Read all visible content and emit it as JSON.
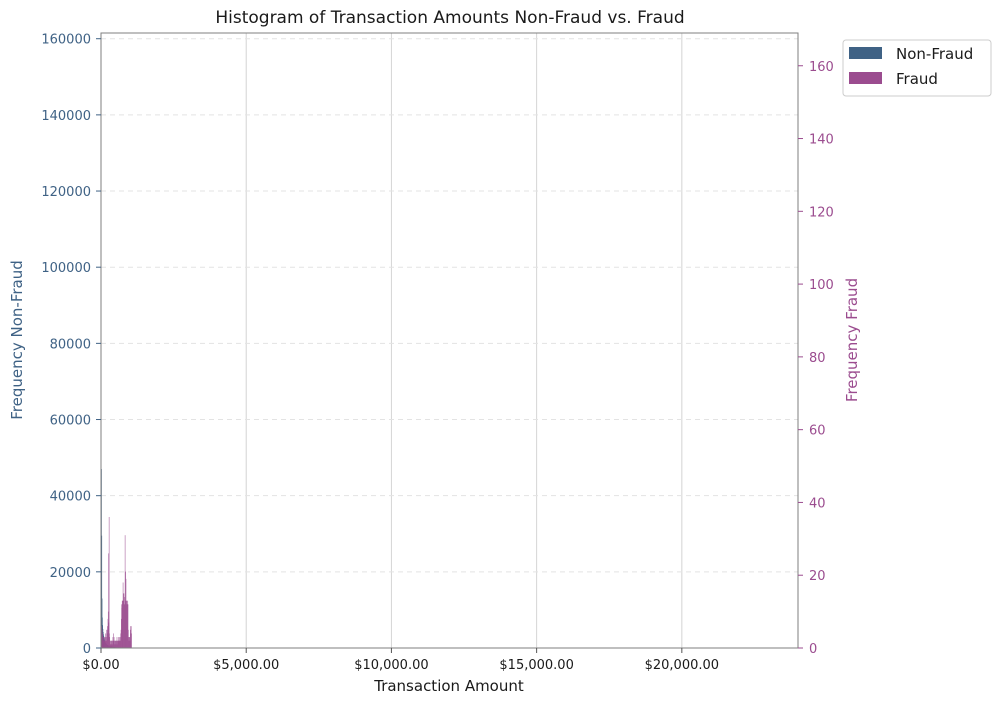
{
  "chart_data": {
    "type": "bar",
    "title": "Histogram of Transaction Amounts Non-Fraud vs. Fraud",
    "xlabel": "Transaction Amount",
    "ylabel_left": "Frequency Non-Fraud",
    "ylabel_right": "Frequency Fraud",
    "xlim": [
      0,
      24000
    ],
    "ylim_left": [
      0,
      161500
    ],
    "ylim_right": [
      0,
      169
    ],
    "x_ticks": [
      0,
      5000,
      10000,
      15000,
      20000
    ],
    "x_tick_labels": [
      "$0.00",
      "$5,000.00",
      "$10,000.00",
      "$15,000.00",
      "$20,000.00"
    ],
    "y_ticks_left": [
      0,
      20000,
      40000,
      60000,
      80000,
      100000,
      120000,
      140000,
      160000
    ],
    "y_tick_labels_left": [
      "0",
      "20000",
      "40000",
      "60000",
      "80000",
      "100000",
      "120000",
      "140000",
      "160000"
    ],
    "y_ticks_right": [
      0,
      20,
      40,
      60,
      80,
      100,
      120,
      140,
      160
    ],
    "y_tick_labels_right": [
      "0",
      "20",
      "40",
      "60",
      "80",
      "100",
      "120",
      "140",
      "160"
    ],
    "legend": {
      "placement": "outside-top-right",
      "entries": [
        "Non-Fraud",
        "Fraud"
      ]
    },
    "grid": {
      "x": true,
      "y": "dashed"
    },
    "colors": {
      "non_fraud": "#3f6285",
      "fraud": "#9b4c8f",
      "left_axis": "#3f6285",
      "right_axis": "#9b4c8f"
    },
    "series": [
      {
        "name": "Non-Fraud",
        "axis": "left",
        "bins": [
          [
            0,
            10,
            47000
          ],
          [
            10,
            20,
            29500
          ],
          [
            20,
            30,
            13000
          ],
          [
            30,
            40,
            8000
          ],
          [
            40,
            50,
            6000
          ],
          [
            50,
            60,
            5000
          ],
          [
            60,
            70,
            4200
          ],
          [
            70,
            80,
            3600
          ],
          [
            80,
            90,
            3100
          ],
          [
            90,
            100,
            2700
          ],
          [
            100,
            110,
            2300
          ],
          [
            110,
            120,
            2000
          ],
          [
            120,
            140,
            1700
          ],
          [
            140,
            160,
            1400
          ],
          [
            160,
            180,
            1200
          ],
          [
            180,
            200,
            1000
          ],
          [
            200,
            250,
            800
          ],
          [
            250,
            300,
            600
          ],
          [
            300,
            400,
            400
          ],
          [
            400,
            500,
            250
          ],
          [
            500,
            700,
            150
          ],
          [
            700,
            1000,
            80
          ]
        ]
      },
      {
        "name": "Fraud",
        "axis": "right",
        "bins": [
          [
            0,
            10,
            4
          ],
          [
            10,
            20,
            6
          ],
          [
            20,
            30,
            3
          ],
          [
            30,
            40,
            5
          ],
          [
            40,
            50,
            2
          ],
          [
            50,
            60,
            4
          ],
          [
            60,
            70,
            3
          ],
          [
            70,
            80,
            2
          ],
          [
            80,
            90,
            3
          ],
          [
            90,
            100,
            2
          ],
          [
            100,
            110,
            2
          ],
          [
            110,
            120,
            3
          ],
          [
            120,
            130,
            2
          ],
          [
            130,
            140,
            3
          ],
          [
            140,
            150,
            2
          ],
          [
            150,
            160,
            4
          ],
          [
            160,
            170,
            3
          ],
          [
            170,
            180,
            2
          ],
          [
            180,
            190,
            5
          ],
          [
            190,
            200,
            3
          ],
          [
            200,
            210,
            4
          ],
          [
            210,
            220,
            6
          ],
          [
            220,
            230,
            5
          ],
          [
            230,
            240,
            8
          ],
          [
            240,
            250,
            10
          ],
          [
            250,
            260,
            26
          ],
          [
            260,
            270,
            7
          ],
          [
            270,
            280,
            36
          ],
          [
            280,
            290,
            4
          ],
          [
            290,
            300,
            3
          ],
          [
            300,
            310,
            2
          ],
          [
            310,
            320,
            1
          ],
          [
            320,
            330,
            2
          ],
          [
            330,
            340,
            1
          ],
          [
            340,
            350,
            2
          ],
          [
            350,
            360,
            2
          ],
          [
            360,
            370,
            1
          ],
          [
            370,
            380,
            2
          ],
          [
            380,
            390,
            1
          ],
          [
            390,
            400,
            2
          ],
          [
            400,
            410,
            3
          ],
          [
            410,
            420,
            2
          ],
          [
            420,
            430,
            4
          ],
          [
            430,
            440,
            2
          ],
          [
            440,
            450,
            3
          ],
          [
            450,
            460,
            2
          ],
          [
            460,
            470,
            1
          ],
          [
            470,
            480,
            2
          ],
          [
            480,
            490,
            2
          ],
          [
            490,
            500,
            1
          ],
          [
            500,
            510,
            2
          ],
          [
            510,
            520,
            1
          ],
          [
            520,
            530,
            2
          ],
          [
            530,
            540,
            2
          ],
          [
            540,
            550,
            3
          ],
          [
            550,
            560,
            2
          ],
          [
            560,
            570,
            1
          ],
          [
            570,
            580,
            2
          ],
          [
            580,
            590,
            2
          ],
          [
            590,
            600,
            2
          ],
          [
            600,
            610,
            3
          ],
          [
            610,
            620,
            2
          ],
          [
            620,
            630,
            2
          ],
          [
            630,
            640,
            3
          ],
          [
            640,
            650,
            2
          ],
          [
            650,
            660,
            2
          ],
          [
            660,
            670,
            3
          ],
          [
            670,
            680,
            4
          ],
          [
            680,
            690,
            5
          ],
          [
            690,
            700,
            8
          ],
          [
            700,
            710,
            12
          ],
          [
            710,
            720,
            11
          ],
          [
            720,
            730,
            13
          ],
          [
            730,
            740,
            12
          ],
          [
            740,
            750,
            13
          ],
          [
            750,
            760,
            18
          ],
          [
            760,
            770,
            13
          ],
          [
            770,
            780,
            15
          ],
          [
            780,
            790,
            15
          ],
          [
            790,
            800,
            12
          ],
          [
            800,
            810,
            14
          ],
          [
            810,
            820,
            12
          ],
          [
            820,
            830,
            31
          ],
          [
            830,
            840,
            13
          ],
          [
            840,
            850,
            21
          ],
          [
            850,
            860,
            19
          ],
          [
            860,
            870,
            13
          ],
          [
            870,
            880,
            12
          ],
          [
            880,
            890,
            13
          ],
          [
            890,
            900,
            12
          ],
          [
            900,
            910,
            12
          ],
          [
            910,
            920,
            13
          ],
          [
            920,
            930,
            12
          ],
          [
            930,
            940,
            5
          ],
          [
            940,
            950,
            3
          ],
          [
            950,
            960,
            2
          ],
          [
            960,
            970,
            3
          ],
          [
            970,
            980,
            2
          ],
          [
            980,
            990,
            3
          ],
          [
            990,
            1000,
            2
          ],
          [
            1000,
            1010,
            5
          ],
          [
            1010,
            1020,
            6
          ],
          [
            1020,
            1030,
            4
          ],
          [
            1030,
            1040,
            6
          ],
          [
            1040,
            1050,
            4
          ]
        ]
      }
    ]
  }
}
